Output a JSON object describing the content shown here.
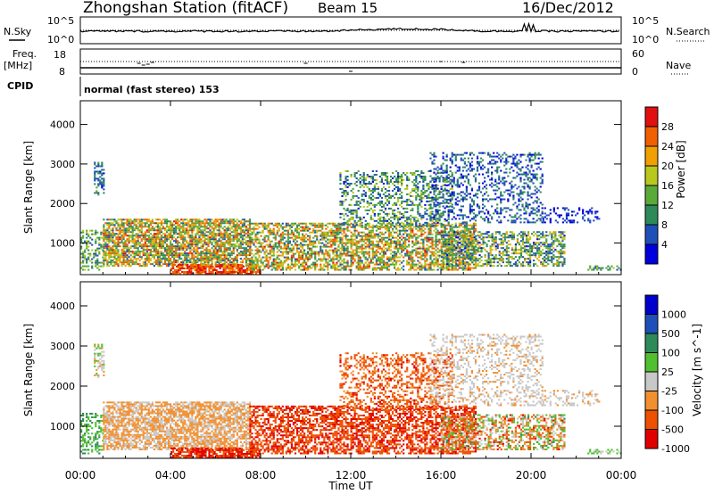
{
  "header": {
    "station": "Zhongshan Station (fitACF)",
    "beam": "Beam 15",
    "date": "16/Dec/2012"
  },
  "top_panels": {
    "nsky_label": "N.Sky",
    "nsky_ticks": [
      "10^5",
      "10^0"
    ],
    "nsearch_label": "N.Search",
    "nsearch_ticks": [
      "10^5",
      "10^0"
    ],
    "freq_label_1": "Freq.",
    "freq_label_2": "[MHz]",
    "freq_ticks": [
      "18",
      "8"
    ],
    "nave_label": "Nave",
    "nave_ticks": [
      "60",
      "0"
    ],
    "cpid_label": "CPID",
    "cpid_text": "normal (fast stereo) 153"
  },
  "colors": {
    "power": [
      "#0000dd",
      "#1f4fb8",
      "#2f8a5a",
      "#5aaa3a",
      "#b8c81c",
      "#f0a000",
      "#f06000",
      "#e01010"
    ],
    "velocity": [
      "#e00000",
      "#ee5000",
      "#f29030",
      "#c8c8c8",
      "#50c030",
      "#2f8a5a",
      "#1f4fb8",
      "#0000cc"
    ]
  },
  "chart_data": [
    {
      "type": "heatmap",
      "title": "Power",
      "ylabel": "Slant Range [km]",
      "xlabel": "",
      "x_ticks": [
        "00:00",
        "04:00",
        "08:00",
        "12:00",
        "16:00",
        "20:00",
        "00:00"
      ],
      "y_ticks": [
        "1000",
        "2000",
        "3000",
        "4000"
      ],
      "ylim": [
        200,
        4600
      ],
      "xlim": [
        0,
        24
      ],
      "colorbar_label": "Power [dB]",
      "colorbar_ticks": [
        "4",
        "8",
        "12",
        "16",
        "20",
        "24",
        "28"
      ],
      "colorbar_range": [
        0,
        32
      ]
    },
    {
      "type": "heatmap",
      "title": "Velocity",
      "ylabel": "Slant Range [km]",
      "xlabel": "Time UT",
      "x_ticks": [
        "00:00",
        "04:00",
        "08:00",
        "12:00",
        "16:00",
        "20:00",
        "00:00"
      ],
      "y_ticks": [
        "1000",
        "2000",
        "3000",
        "4000"
      ],
      "ylim": [
        200,
        4600
      ],
      "xlim": [
        0,
        24
      ],
      "colorbar_label": "Velocity [m s^-1]",
      "colorbar_ticks": [
        "1000",
        "500",
        "100",
        "25",
        "-25",
        "-100",
        "-500",
        "-1000"
      ]
    }
  ]
}
